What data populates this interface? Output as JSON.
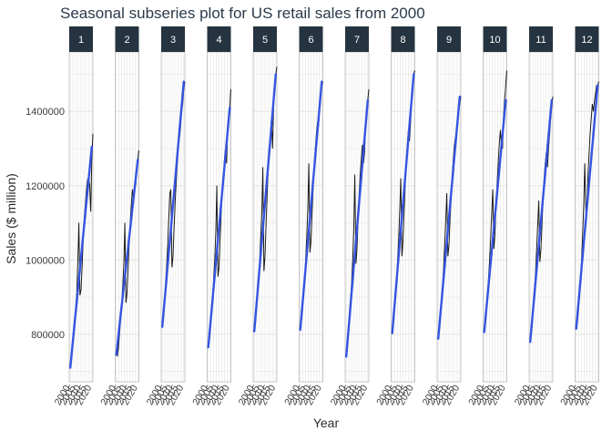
{
  "chart_data": {
    "type": "line",
    "title": "Seasonal subseries plot for US retail sales from 2000",
    "xlabel": "Year",
    "ylabel": "Sales ($ million)",
    "ylim": [
      672000,
      1560000
    ],
    "xlim": [
      1999,
      2021
    ],
    "yticks": [
      800000,
      1000000,
      1200000,
      1400000
    ],
    "ytick_labels": [
      "800000",
      "1000000",
      "1200000",
      "1400000"
    ],
    "xticks": [
      2000,
      2005,
      2010,
      2015,
      2020
    ],
    "xtick_labels": [
      "2000",
      "2005",
      "2010",
      "2015",
      "2020"
    ],
    "grid": true,
    "legend": "none",
    "colors": {
      "series": "#1a1a1a",
      "trend": "#3355e0",
      "strip_fill": "#263340",
      "strip_text": "#ffffff",
      "title": "#2b3a4a",
      "grid": "#e2e2e2",
      "panel_border": "#b3b3b3"
    },
    "panels": [
      {
        "label": "1",
        "values": [
          712000,
          735000,
          758000,
          790000,
          830000,
          870000,
          910000,
          1000000,
          1100000,
          905000,
          920000,
          985000,
          1060000,
          1110000,
          1150000,
          1190000,
          1215000,
          1225000,
          1200000,
          1130000,
          1270000,
          1340000
        ],
        "trend": [
          710000,
          1305000
        ]
      },
      {
        "label": "2",
        "values": [
          745000,
          742000,
          760000,
          800000,
          840000,
          880000,
          930000,
          990000,
          1100000,
          885000,
          910000,
          980000,
          1050000,
          1100000,
          1150000,
          1190000,
          1160000,
          1195000,
          1200000,
          1240000,
          1270000,
          1295000
        ],
        "trend": [
          745000,
          1270000
        ]
      },
      {
        "label": "3",
        "values": [
          820000,
          840000,
          880000,
          930000,
          980000,
          1040000,
          1110000,
          1180000,
          1190000,
          980000,
          1010000,
          1090000,
          1160000,
          1210000,
          1260000,
          1320000,
          1330000,
          1360000,
          1400000,
          1420000,
          1460000,
          1480000
        ],
        "trend": [
          820000,
          1480000
        ]
      },
      {
        "label": "4",
        "values": [
          765000,
          790000,
          820000,
          860000,
          900000,
          950000,
          1000000,
          1080000,
          1200000,
          955000,
          980000,
          1060000,
          1130000,
          1180000,
          1220000,
          1270000,
          1300000,
          1260000,
          1350000,
          1380000,
          1410000,
          1460000
        ],
        "trend": [
          765000,
          1410000
        ]
      },
      {
        "label": "5",
        "values": [
          808000,
          830000,
          860000,
          900000,
          950000,
          1000000,
          1060000,
          1130000,
          1250000,
          970000,
          1010000,
          1100000,
          1180000,
          1240000,
          1290000,
          1340000,
          1380000,
          1300000,
          1420000,
          1460000,
          1500000,
          1520000
        ],
        "trend": [
          808000,
          1500000
        ]
      },
      {
        "label": "6",
        "values": [
          812000,
          835000,
          860000,
          900000,
          950000,
          1000000,
          1060000,
          1140000,
          1260000,
          1020000,
          1050000,
          1130000,
          1200000,
          1250000,
          1300000,
          1340000,
          1370000,
          1360000,
          1410000,
          1440000,
          1470000,
          1480000
        ],
        "trend": [
          812000,
          1480000
        ]
      },
      {
        "label": "7",
        "values": [
          740000,
          770000,
          800000,
          840000,
          890000,
          940000,
          1000000,
          1090000,
          1230000,
          990000,
          1030000,
          1110000,
          1180000,
          1230000,
          1270000,
          1310000,
          1260000,
          1290000,
          1360000,
          1400000,
          1430000,
          1460000
        ],
        "trend": [
          740000,
          1430000
        ]
      },
      {
        "label": "8",
        "values": [
          803000,
          830000,
          860000,
          900000,
          950000,
          1000000,
          1060000,
          1140000,
          1220000,
          1010000,
          1050000,
          1130000,
          1200000,
          1260000,
          1310000,
          1350000,
          1320000,
          1370000,
          1420000,
          1460000,
          1500000,
          1510000
        ],
        "trend": [
          803000,
          1500000
        ]
      },
      {
        "label": "9",
        "values": [
          788000,
          810000,
          840000,
          880000,
          930000,
          980000,
          1040000,
          1110000,
          1180000,
          1010000,
          1040000,
          1110000,
          1170000,
          1220000,
          1270000,
          1310000,
          1330000,
          1340000,
          1360000,
          1400000,
          1420000,
          1440000
        ],
        "trend": [
          788000,
          1440000
        ]
      },
      {
        "label": "10",
        "values": [
          806000,
          830000,
          860000,
          900000,
          950000,
          1000000,
          1060000,
          1130000,
          1190000,
          1030000,
          1070000,
          1150000,
          1210000,
          1260000,
          1310000,
          1350000,
          1310000,
          1300000,
          1390000,
          1430000,
          1470000,
          1510000
        ],
        "trend": [
          806000,
          1430000
        ]
      },
      {
        "label": "11",
        "values": [
          780000,
          800000,
          830000,
          870000,
          920000,
          970000,
          1030000,
          1100000,
          1160000,
          995000,
          1030000,
          1100000,
          1170000,
          1220000,
          1260000,
          1290000,
          1250000,
          1300000,
          1340000,
          1380000,
          1410000,
          1440000
        ],
        "trend": [
          780000,
          1430000
        ]
      },
      {
        "label": "12",
        "values": [
          815000,
          830000,
          860000,
          900000,
          950000,
          1000000,
          1070000,
          1150000,
          1260000,
          1130000,
          1150000,
          1230000,
          1290000,
          1340000,
          1380000,
          1420000,
          1400000,
          1430000,
          1450000,
          1470000,
          1470000,
          1480000
        ],
        "trend": [
          815000,
          1470000
        ]
      }
    ]
  }
}
